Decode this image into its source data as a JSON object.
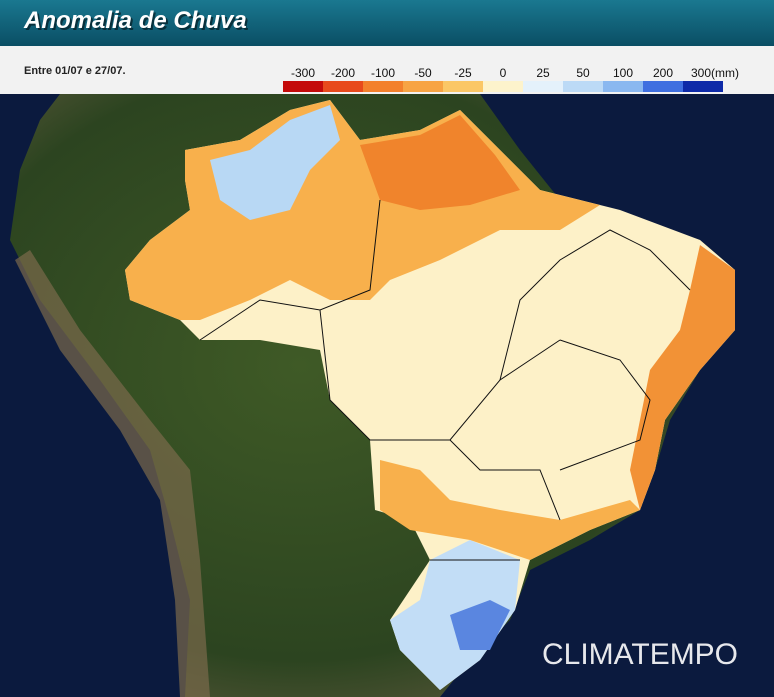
{
  "header": {
    "title": "Anomalia de Chuva",
    "period": "Entre 01/07 e 27/07."
  },
  "legend": {
    "items": [
      {
        "label": "-300",
        "color": "#c40a0a"
      },
      {
        "label": "-200",
        "color": "#e84a1c"
      },
      {
        "label": "-100",
        "color": "#f3802c"
      },
      {
        "label": "-50",
        "color": "#f7a444"
      },
      {
        "label": "-25",
        "color": "#fbc766"
      },
      {
        "label": "0",
        "color": "#fdf3cc"
      },
      {
        "label": "25",
        "color": "#e4f1fb"
      },
      {
        "label": "50",
        "color": "#bcdaf6"
      },
      {
        "label": "100",
        "color": "#8ab8f0"
      },
      {
        "label": "200",
        "color": "#3f6fe0"
      },
      {
        "label": "300(mm)",
        "color": "#0e2aa8"
      }
    ]
  },
  "brand": "CLIMATEMPO"
}
